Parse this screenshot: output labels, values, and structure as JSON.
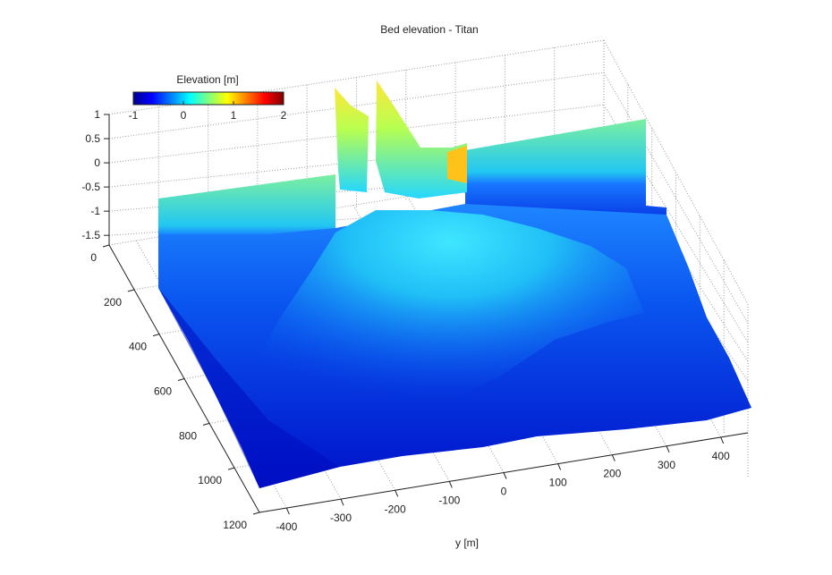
{
  "chart_data": {
    "type": "surface",
    "title": "Bed elevation - Titan",
    "xlabel": "",
    "ylabel": "y [m]",
    "zlabel": "",
    "x_ticks": [
      0,
      200,
      400,
      600,
      800,
      1000,
      1200
    ],
    "y_ticks": [
      -400,
      -300,
      -200,
      -100,
      0,
      100,
      200,
      300,
      400
    ],
    "z_ticks": [
      -1.5,
      -1,
      -0.5,
      0,
      0.5,
      1
    ],
    "xlim": [
      0,
      1200
    ],
    "ylim": [
      -450,
      450
    ],
    "zlim": [
      -1.7,
      1
    ],
    "grid": true,
    "colormap": "jet",
    "colorbar": {
      "label": "Elevation [m]",
      "ticks": [
        -1,
        0,
        1,
        2
      ],
      "range": [
        -1,
        2
      ],
      "placement": "top-left"
    }
  },
  "colors": {
    "background": "#ffffff",
    "axis": "#222222",
    "grid": "#9a9a9a",
    "jet": [
      "#00008f",
      "#0000ff",
      "#007fff",
      "#00ffff",
      "#7fff7f",
      "#ffff00",
      "#ff7f00",
      "#ff0000",
      "#7f0000"
    ]
  }
}
